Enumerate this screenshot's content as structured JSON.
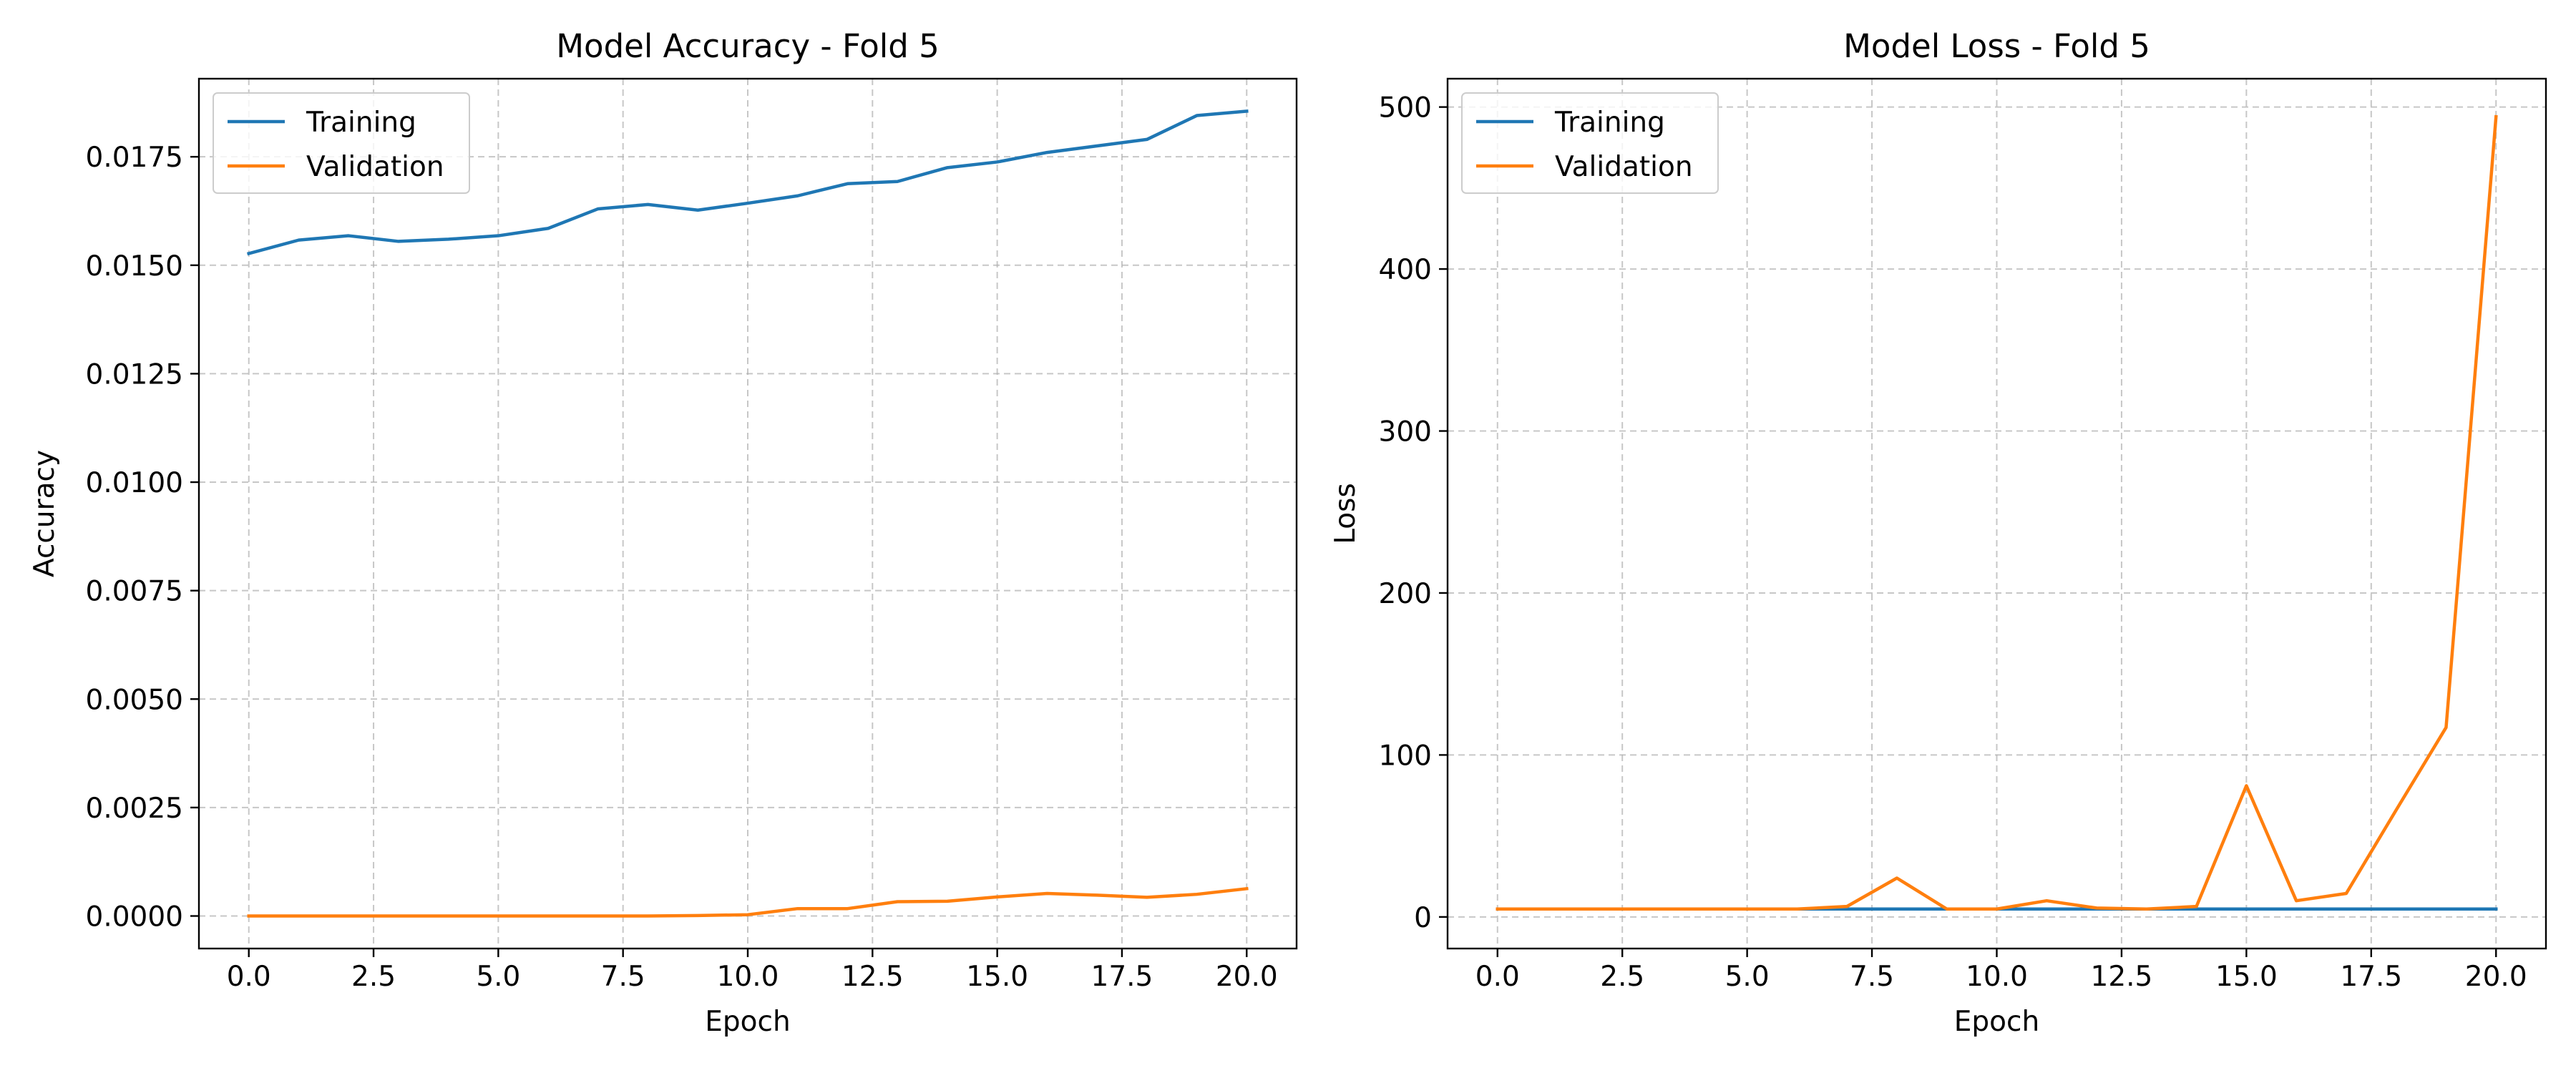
{
  "chart_data": [
    {
      "type": "line",
      "title": "Model Accuracy - Fold 5",
      "xlabel": "Epoch",
      "ylabel": "Accuracy",
      "xlim": [
        -1.0,
        21.0
      ],
      "ylim": [
        -0.00075,
        0.0193
      ],
      "xticks": [
        0.0,
        2.5,
        5.0,
        7.5,
        10.0,
        12.5,
        15.0,
        17.5,
        20.0
      ],
      "xtick_labels": [
        "0.0",
        "2.5",
        "5.0",
        "7.5",
        "10.0",
        "12.5",
        "15.0",
        "17.5",
        "20.0"
      ],
      "yticks": [
        0.0,
        0.0025,
        0.005,
        0.0075,
        0.01,
        0.0125,
        0.015,
        0.0175
      ],
      "ytick_labels": [
        "0.0000",
        "0.0025",
        "0.0050",
        "0.0075",
        "0.0100",
        "0.0125",
        "0.0150",
        "0.0175"
      ],
      "grid": true,
      "legend_position": "top-left",
      "x": [
        0,
        1,
        2,
        3,
        4,
        5,
        6,
        7,
        8,
        9,
        10,
        11,
        12,
        13,
        14,
        15,
        16,
        17,
        18,
        19,
        20
      ],
      "series": [
        {
          "name": "Training",
          "color": "#1f77b4",
          "values": [
            0.01527,
            0.01558,
            0.01568,
            0.01555,
            0.0156,
            0.01568,
            0.01585,
            0.0163,
            0.0164,
            0.01627,
            0.01643,
            0.0166,
            0.01688,
            0.01693,
            0.01725,
            0.01738,
            0.0176,
            0.01775,
            0.0179,
            0.01845,
            0.01855
          ]
        },
        {
          "name": "Validation",
          "color": "#ff7f0e",
          "values": [
            0.0,
            0.0,
            0.0,
            0.0,
            0.0,
            0.0,
            0.0,
            0.0,
            0.0,
            1e-05,
            3e-05,
            0.00017,
            0.00017,
            0.00033,
            0.00034,
            0.00044,
            0.00052,
            0.00048,
            0.00043,
            0.0005,
            0.00063
          ]
        }
      ]
    },
    {
      "type": "line",
      "title": "Model Loss - Fold 5",
      "xlabel": "Epoch",
      "ylabel": "Loss",
      "xlim": [
        -1.0,
        21.0
      ],
      "ylim": [
        -19.5,
        517.5
      ],
      "xticks": [
        0.0,
        2.5,
        5.0,
        7.5,
        10.0,
        12.5,
        15.0,
        17.5,
        20.0
      ],
      "xtick_labels": [
        "0.0",
        "2.5",
        "5.0",
        "7.5",
        "10.0",
        "12.5",
        "15.0",
        "17.5",
        "20.0"
      ],
      "yticks": [
        0,
        100,
        200,
        300,
        400,
        500
      ],
      "ytick_labels": [
        "0",
        "100",
        "200",
        "300",
        "400",
        "500"
      ],
      "grid": true,
      "legend_position": "top-left",
      "x": [
        0,
        1,
        2,
        3,
        4,
        5,
        6,
        7,
        8,
        9,
        10,
        11,
        12,
        13,
        14,
        15,
        16,
        17,
        18,
        19,
        20
      ],
      "series": [
        {
          "name": "Training",
          "color": "#1f77b4",
          "values": [
            4.9,
            4.9,
            4.9,
            4.9,
            4.9,
            4.9,
            4.9,
            4.9,
            4.9,
            4.9,
            4.9,
            4.9,
            4.9,
            4.9,
            4.9,
            4.9,
            4.9,
            4.9,
            4.9,
            4.9,
            4.9
          ]
        },
        {
          "name": "Validation",
          "color": "#ff7f0e",
          "values": [
            4.9,
            4.9,
            4.9,
            4.9,
            4.9,
            4.9,
            4.9,
            6.5,
            24,
            4.9,
            4.9,
            10,
            5.5,
            4.9,
            6.5,
            81,
            10,
            14.5,
            66,
            117,
            494
          ]
        }
      ]
    }
  ]
}
